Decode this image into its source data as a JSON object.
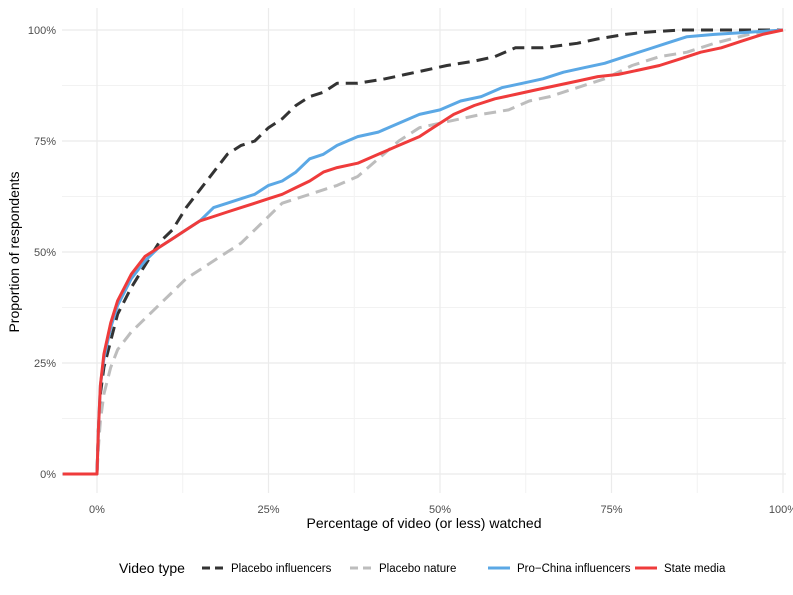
{
  "chart_data": {
    "type": "line",
    "title": "",
    "xlabel": "Percentage of video (or less) watched",
    "ylabel": "Proportion of respondents",
    "xlim": [
      -0.05,
      1.0
    ],
    "ylim": [
      0,
      1.0
    ],
    "x_ticks": [
      0,
      0.25,
      0.5,
      0.75,
      1.0
    ],
    "x_tick_labels": [
      "0%",
      "25%",
      "50%",
      "75%",
      "100%"
    ],
    "y_ticks": [
      0,
      0.25,
      0.5,
      0.75,
      1.0
    ],
    "y_tick_labels": [
      "0%",
      "25%",
      "50%",
      "75%",
      "100%"
    ],
    "grid": true,
    "legend": {
      "title": "Video type",
      "position": "bottom"
    },
    "series": [
      {
        "name": "Placebo influencers",
        "color": "#333333",
        "dash": "dashed",
        "x": [
          -0.05,
          0,
          0.002,
          0.005,
          0.01,
          0.02,
          0.03,
          0.05,
          0.07,
          0.09,
          0.11,
          0.13,
          0.15,
          0.17,
          0.19,
          0.21,
          0.23,
          0.25,
          0.27,
          0.29,
          0.31,
          0.33,
          0.35,
          0.38,
          0.42,
          0.45,
          0.48,
          0.51,
          0.55,
          0.58,
          0.61,
          0.65,
          0.7,
          0.73,
          0.77,
          0.8,
          0.85,
          0.9,
          0.95,
          1.0
        ],
        "y": [
          0,
          0,
          0.1,
          0.18,
          0.24,
          0.3,
          0.36,
          0.42,
          0.47,
          0.52,
          0.55,
          0.6,
          0.64,
          0.68,
          0.72,
          0.74,
          0.75,
          0.78,
          0.8,
          0.83,
          0.85,
          0.86,
          0.88,
          0.88,
          0.89,
          0.9,
          0.91,
          0.92,
          0.93,
          0.94,
          0.96,
          0.96,
          0.97,
          0.98,
          0.99,
          0.995,
          1.0,
          1.0,
          1.0,
          1.0
        ]
      },
      {
        "name": "Placebo nature",
        "color": "#bdbdbd",
        "dash": "dashed",
        "x": [
          -0.05,
          0,
          0.002,
          0.005,
          0.01,
          0.02,
          0.03,
          0.05,
          0.07,
          0.09,
          0.11,
          0.13,
          0.15,
          0.17,
          0.19,
          0.21,
          0.23,
          0.25,
          0.27,
          0.29,
          0.31,
          0.33,
          0.35,
          0.38,
          0.41,
          0.44,
          0.47,
          0.5,
          0.53,
          0.56,
          0.6,
          0.63,
          0.66,
          0.7,
          0.74,
          0.78,
          0.82,
          0.86,
          0.9,
          0.95,
          1.0
        ],
        "y": [
          0,
          0,
          0.06,
          0.12,
          0.18,
          0.24,
          0.28,
          0.32,
          0.35,
          0.38,
          0.41,
          0.44,
          0.46,
          0.48,
          0.5,
          0.52,
          0.55,
          0.58,
          0.61,
          0.62,
          0.63,
          0.64,
          0.65,
          0.67,
          0.71,
          0.75,
          0.78,
          0.79,
          0.8,
          0.81,
          0.82,
          0.84,
          0.85,
          0.87,
          0.89,
          0.92,
          0.94,
          0.95,
          0.97,
          0.99,
          1.0
        ]
      },
      {
        "name": "Pro−China influencers",
        "color": "#5ba8e5",
        "dash": "solid",
        "x": [
          -0.05,
          0,
          0.002,
          0.005,
          0.01,
          0.02,
          0.03,
          0.05,
          0.07,
          0.09,
          0.11,
          0.13,
          0.15,
          0.17,
          0.19,
          0.21,
          0.23,
          0.25,
          0.27,
          0.29,
          0.31,
          0.33,
          0.35,
          0.38,
          0.41,
          0.44,
          0.47,
          0.5,
          0.53,
          0.56,
          0.59,
          0.62,
          0.65,
          0.68,
          0.71,
          0.74,
          0.77,
          0.8,
          0.83,
          0.86,
          0.9,
          0.95,
          1.0
        ],
        "y": [
          0,
          0,
          0.1,
          0.2,
          0.26,
          0.33,
          0.38,
          0.44,
          0.48,
          0.51,
          0.53,
          0.55,
          0.57,
          0.6,
          0.61,
          0.62,
          0.63,
          0.65,
          0.66,
          0.68,
          0.71,
          0.72,
          0.74,
          0.76,
          0.77,
          0.79,
          0.81,
          0.82,
          0.84,
          0.85,
          0.87,
          0.88,
          0.89,
          0.905,
          0.915,
          0.925,
          0.94,
          0.955,
          0.97,
          0.985,
          0.99,
          0.995,
          1.0
        ]
      },
      {
        "name": "State media",
        "color": "#ef3b3b",
        "dash": "solid",
        "x": [
          -0.05,
          0,
          0.002,
          0.005,
          0.01,
          0.02,
          0.03,
          0.05,
          0.07,
          0.09,
          0.11,
          0.13,
          0.15,
          0.17,
          0.19,
          0.21,
          0.23,
          0.25,
          0.27,
          0.29,
          0.31,
          0.33,
          0.35,
          0.38,
          0.41,
          0.44,
          0.47,
          0.5,
          0.52,
          0.55,
          0.58,
          0.61,
          0.64,
          0.67,
          0.7,
          0.73,
          0.76,
          0.79,
          0.82,
          0.85,
          0.88,
          0.91,
          0.94,
          0.97,
          1.0
        ],
        "y": [
          0,
          0,
          0.1,
          0.2,
          0.27,
          0.34,
          0.39,
          0.45,
          0.49,
          0.51,
          0.53,
          0.55,
          0.57,
          0.58,
          0.59,
          0.6,
          0.61,
          0.62,
          0.63,
          0.645,
          0.66,
          0.68,
          0.69,
          0.7,
          0.72,
          0.74,
          0.76,
          0.79,
          0.81,
          0.83,
          0.845,
          0.855,
          0.865,
          0.875,
          0.885,
          0.895,
          0.9,
          0.91,
          0.92,
          0.935,
          0.95,
          0.96,
          0.975,
          0.99,
          1.0
        ]
      }
    ]
  }
}
